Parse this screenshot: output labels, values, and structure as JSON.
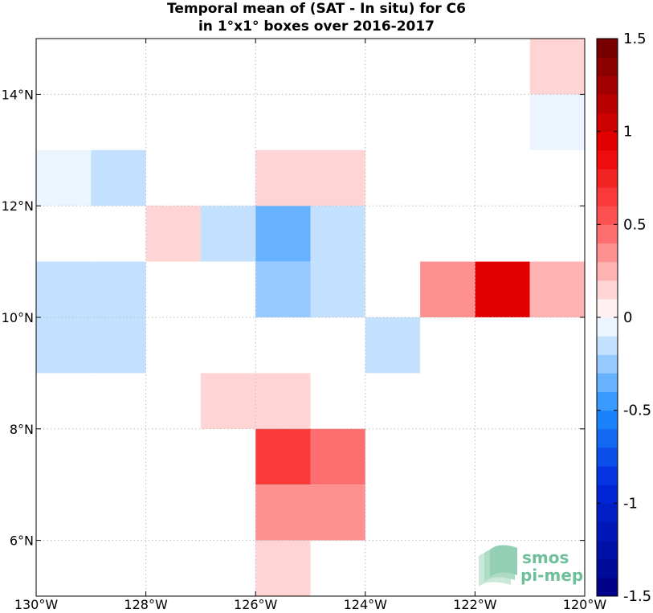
{
  "chart_data": {
    "type": "heatmap",
    "title_lines": [
      "Temporal mean of (SAT - In situ) for C6",
      "in 1°x1° boxes over 2016-2017"
    ],
    "xlim": [
      -130,
      -120
    ],
    "ylim": [
      5,
      15
    ],
    "xticks": [
      {
        "value": -130,
        "label": "130°W"
      },
      {
        "value": -128,
        "label": "128°W"
      },
      {
        "value": -126,
        "label": "126°W"
      },
      {
        "value": -124,
        "label": "124°W"
      },
      {
        "value": -122,
        "label": "122°W"
      },
      {
        "value": -120,
        "label": "120°W"
      }
    ],
    "yticks": [
      {
        "value": 6,
        "label": "6°N"
      },
      {
        "value": 8,
        "label": "8°N"
      },
      {
        "value": 10,
        "label": "10°N"
      },
      {
        "value": 12,
        "label": "12°N"
      },
      {
        "value": 14,
        "label": "14°N"
      }
    ],
    "grid": true,
    "cell_size_deg": 1,
    "cells": [
      {
        "lon": -121,
        "lat": 14,
        "value": 0.18
      },
      {
        "lon": -121,
        "lat": 13,
        "value": -0.08
      },
      {
        "lon": -130,
        "lat": 12,
        "value": -0.08
      },
      {
        "lon": -129,
        "lat": 12,
        "value": -0.2
      },
      {
        "lon": -126,
        "lat": 12,
        "value": 0.12
      },
      {
        "lon": -125,
        "lat": 12,
        "value": 0.12
      },
      {
        "lon": -128,
        "lat": 11,
        "value": 0.15
      },
      {
        "lon": -127,
        "lat": 11,
        "value": -0.1
      },
      {
        "lon": -126,
        "lat": 11,
        "value": -0.4
      },
      {
        "lon": -125,
        "lat": 11,
        "value": -0.1
      },
      {
        "lon": -130,
        "lat": 10,
        "value": -0.1
      },
      {
        "lon": -129,
        "lat": 10,
        "value": -0.2
      },
      {
        "lon": -126,
        "lat": 10,
        "value": -0.25
      },
      {
        "lon": -125,
        "lat": 10,
        "value": -0.1
      },
      {
        "lon": -123,
        "lat": 10,
        "value": 0.35
      },
      {
        "lon": -122,
        "lat": 10,
        "value": 0.95
      },
      {
        "lon": -121,
        "lat": 10,
        "value": 0.25
      },
      {
        "lon": -130,
        "lat": 9,
        "value": -0.1
      },
      {
        "lon": -129,
        "lat": 9,
        "value": -0.2
      },
      {
        "lon": -124,
        "lat": 9,
        "value": -0.1
      },
      {
        "lon": -127,
        "lat": 8,
        "value": 0.1
      },
      {
        "lon": -126,
        "lat": 8,
        "value": 0.1
      },
      {
        "lon": -126,
        "lat": 7,
        "value": 0.6
      },
      {
        "lon": -125,
        "lat": 7,
        "value": 0.45
      },
      {
        "lon": -126,
        "lat": 6,
        "value": 0.35
      },
      {
        "lon": -125,
        "lat": 6,
        "value": 0.35
      },
      {
        "lon": -126,
        "lat": 5,
        "value": 0.12
      }
    ],
    "colorbar": {
      "vmin": -1.5,
      "vmax": 1.5,
      "levels": 30,
      "ticks": [
        {
          "value": 1.5,
          "label": "1.5"
        },
        {
          "value": 1.0,
          "label": "1"
        },
        {
          "value": 0.5,
          "label": "0.5"
        },
        {
          "value": 0.0,
          "label": "0"
        },
        {
          "value": -0.5,
          "label": "-0.5"
        },
        {
          "value": -1.0,
          "label": "-1"
        },
        {
          "value": -1.5,
          "label": "-1.5"
        }
      ]
    }
  },
  "watermark": {
    "line1": "smos",
    "line2": "pi-mep",
    "color": "#6fbf9b",
    "icon": "wave-layers-icon"
  }
}
